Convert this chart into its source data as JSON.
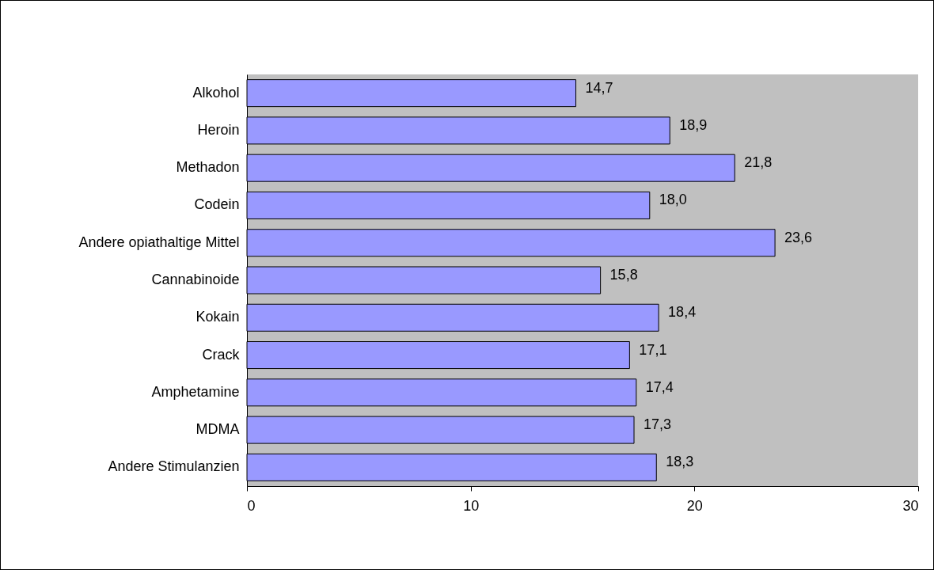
{
  "chart_data": {
    "type": "bar",
    "orientation": "horizontal",
    "categories": [
      "Alkohol",
      "Heroin",
      "Methadon",
      "Codein",
      "Andere opiathaltige Mittel",
      "Cannabinoide",
      "Kokain",
      "Crack",
      "Amphetamine",
      "MDMA",
      "Andere Stimulanzien"
    ],
    "values": [
      14.7,
      18.9,
      21.8,
      18.0,
      23.6,
      15.8,
      18.4,
      17.1,
      17.4,
      17.3,
      18.3
    ],
    "value_labels": [
      "14,7",
      "18,9",
      "21,8",
      "18,0",
      "23,6",
      "15,8",
      "18,4",
      "17,1",
      "17,4",
      "17,3",
      "18,3"
    ],
    "color": "#9999ff",
    "xlim": [
      0,
      30
    ],
    "xticks": [
      0,
      10,
      20,
      30
    ],
    "grid": false
  }
}
